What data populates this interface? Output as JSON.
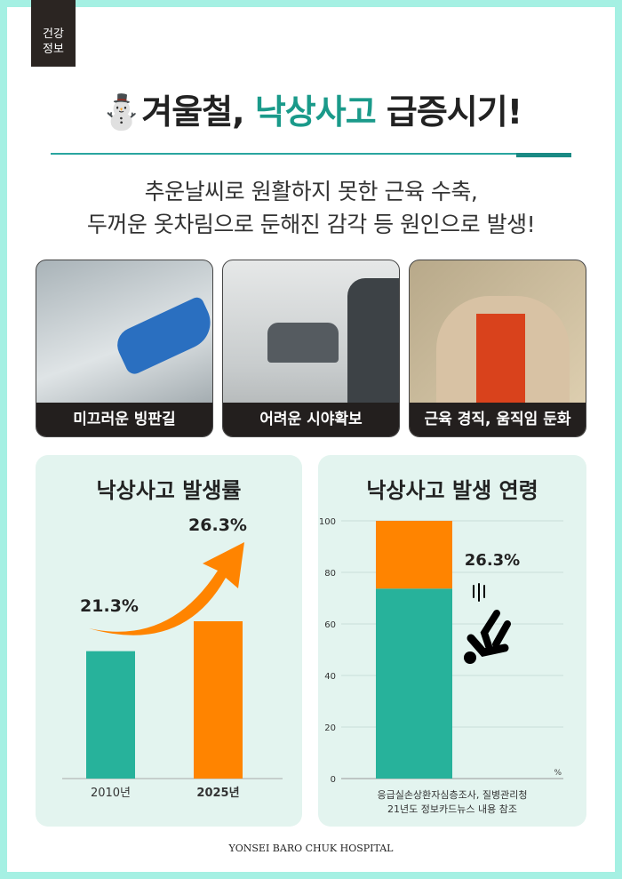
{
  "badge": {
    "line1": "건강",
    "line2": "정보"
  },
  "title": {
    "icon": "snowman-icon",
    "part1": "겨울철, ",
    "highlight": "낙상사고",
    "part2": " 급증시기!"
  },
  "subtitle": [
    "추운날씨로 원활하지 못한 근육 수축,",
    "두꺼운 옷차림으로 둔해진 감각 등 원인으로 발생!"
  ],
  "cards": [
    {
      "label": "미끄러운 빙판길"
    },
    {
      "label": "어려운 시야확보"
    },
    {
      "label": "근육 경직, 움직임 둔화"
    }
  ],
  "colors": {
    "teal": "#27b29b",
    "orange": "#ff8400",
    "accent": "#1a9a8a",
    "frame": "#a5f0e3",
    "panel": "#e3f4ef"
  },
  "chart_data": [
    {
      "type": "bar",
      "title": "낙상사고 발생률",
      "categories": [
        "2010년",
        "2025년"
      ],
      "values": [
        21.3,
        26.3
      ],
      "data_labels": [
        "21.3%",
        "26.3%"
      ],
      "colors": [
        "#27b29b",
        "#ff8400"
      ],
      "annotation": "rising arrow"
    },
    {
      "type": "bar",
      "stacked": true,
      "title": "낙상사고 발생 연령",
      "ylim": [
        0,
        100
      ],
      "yticks": [
        "0",
        "20",
        "40",
        "60",
        "80",
        "100"
      ],
      "unit": "%",
      "series": [
        {
          "values": [
            73.7
          ],
          "color": "#27b29b"
        },
        {
          "values": [
            26.3
          ],
          "color": "#ff8400"
        }
      ],
      "data_label": "26.3%",
      "grid": true,
      "icon": "falling-person-icon",
      "source": [
        "응급실손상환자심층조사, 질병관리청",
        "21년도 정보카드뉴스 내용 참조"
      ]
    }
  ],
  "footer": "YONSEI BARO CHUK HOSPITAL"
}
